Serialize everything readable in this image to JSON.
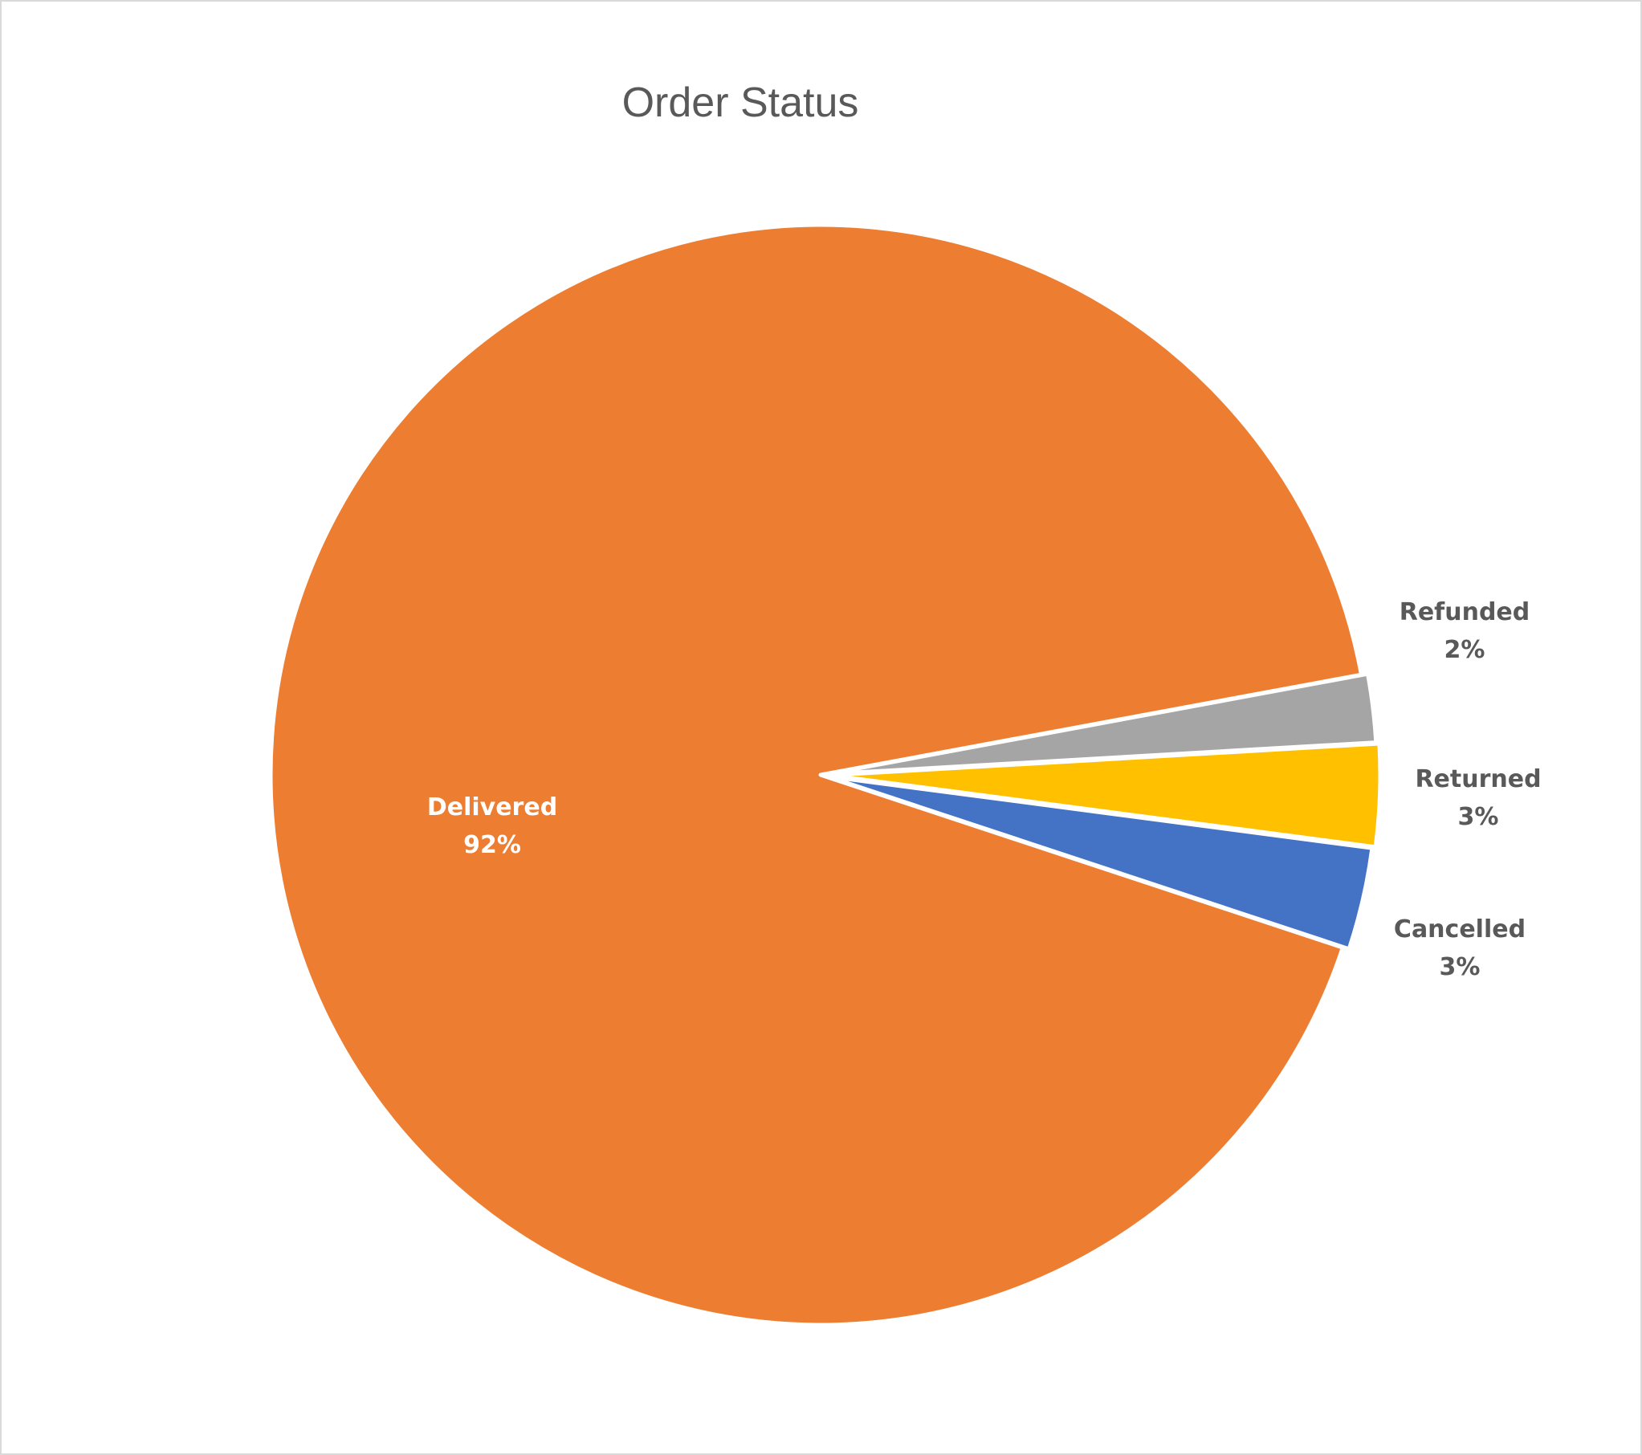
{
  "chart_data": {
    "type": "pie",
    "title": "Order Status",
    "categories": [
      "Delivered",
      "Refunded",
      "Returned",
      "Cancelled"
    ],
    "values": [
      92,
      2,
      3,
      3
    ],
    "labels": [
      {
        "category": "Delivered",
        "percent": "92%"
      },
      {
        "category": "Refunded",
        "percent": "2%"
      },
      {
        "category": "Returned",
        "percent": "3%"
      },
      {
        "category": "Cancelled",
        "percent": "3%"
      }
    ],
    "colors": [
      "#ED7D31",
      "#A5A5A5",
      "#FFC000",
      "#4472C4"
    ],
    "label_colors": [
      "#FFFFFF",
      "#595959",
      "#595959",
      "#595959"
    ],
    "legend": "none"
  }
}
